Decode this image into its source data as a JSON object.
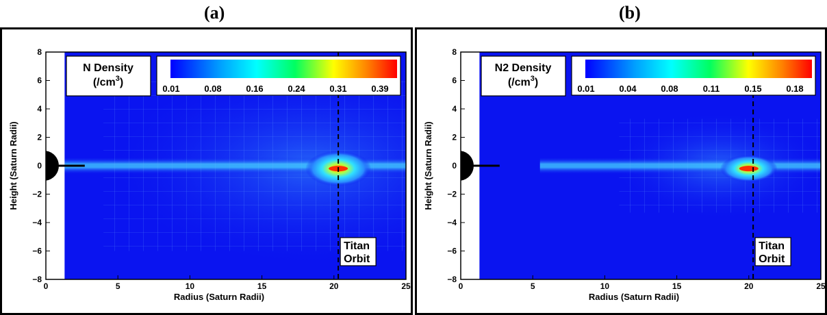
{
  "chart_data": [
    {
      "type": "heatmap",
      "panel_label": "(a)",
      "legend_title": "N Density",
      "legend_unit": "(/cm",
      "legend_unit_exp": "3",
      "legend_unit_close": ")",
      "colorbar_ticks": [
        "0.01",
        "0.08",
        "0.16",
        "0.24",
        "0.31",
        "0.39"
      ],
      "xlabel": "Radius (Saturn Radii)",
      "ylabel": "Height (Saturn Radii)",
      "xlim": [
        0,
        25
      ],
      "ylim": [
        -8,
        8
      ],
      "x_ticks": [
        "0",
        "5",
        "10",
        "15",
        "20",
        "25"
      ],
      "y_ticks": [
        "8",
        "6",
        "4",
        "2",
        "0",
        "−2",
        "−4",
        "−6",
        "−8"
      ],
      "orbit_x": 20.3,
      "orbit_label_1": "Titan",
      "orbit_label_2": "Orbit",
      "peak": {
        "x": 20.3,
        "y": -0.2
      },
      "colors": {
        "background": "#0a14f0",
        "mask": "#ffffff"
      }
    },
    {
      "type": "heatmap",
      "panel_label": "(b)",
      "legend_title": "N2 Density",
      "legend_unit": "(/cm",
      "legend_unit_exp": "3",
      "legend_unit_close": ")",
      "colorbar_ticks": [
        "0.01",
        "0.04",
        "0.08",
        "0.11",
        "0.15",
        "0.18"
      ],
      "xlabel": "Radius (Saturn Radii)",
      "ylabel": "Height (Saturn Radii)",
      "xlim": [
        0,
        25
      ],
      "ylim": [
        -8,
        8
      ],
      "x_ticks": [
        "0",
        "5",
        "10",
        "15",
        "20",
        "25"
      ],
      "y_ticks": [
        "8",
        "6",
        "4",
        "2",
        "0",
        "−2",
        "−4",
        "−6",
        "−8"
      ],
      "orbit_x": 20.3,
      "orbit_label_1": "Titan",
      "orbit_label_2": "Orbit",
      "peak": {
        "x": 20.0,
        "y": -0.2
      },
      "colors": {
        "background": "#0a14f0",
        "mask": "#ffffff"
      }
    }
  ]
}
